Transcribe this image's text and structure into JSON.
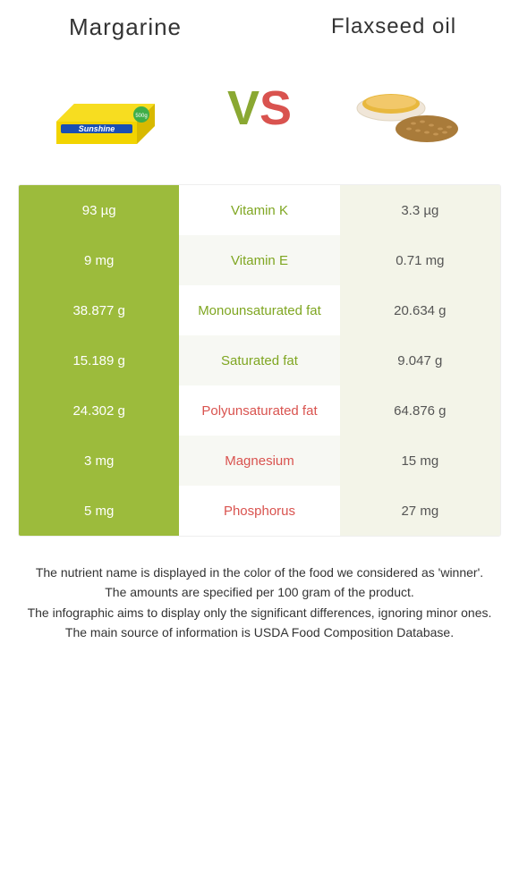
{
  "header": {
    "left_title": "Margarine",
    "right_title": "Flaxseed oil",
    "vs_v": "V",
    "vs_s": "S"
  },
  "colors": {
    "left_bg": "#9cbb3c",
    "left_text": "#ffffff",
    "mid_bg": "#ffffff",
    "mid_alt_bg": "#f7f8f3",
    "right_bg": "#f3f4e8",
    "right_text": "#555555",
    "winner_left": "#7fa621",
    "winner_right": "#d9534f",
    "border": "#eeeeee",
    "margarine_box": "#f2d400",
    "margarine_box_shadow": "#e0c400",
    "margarine_band": "#1a4fb3",
    "oil": "#e8b83e",
    "bowl": "#f0e6d8",
    "seeds": "#a97b3a"
  },
  "rows": [
    {
      "left": "93 µg",
      "mid": "Vitamin K",
      "right": "3.3 µg",
      "winner": "left"
    },
    {
      "left": "9 mg",
      "mid": "Vitamin E",
      "right": "0.71 mg",
      "winner": "left"
    },
    {
      "left": "38.877 g",
      "mid": "Monounsaturated fat",
      "right": "20.634 g",
      "winner": "left"
    },
    {
      "left": "15.189 g",
      "mid": "Saturated fat",
      "right": "9.047 g",
      "winner": "left"
    },
    {
      "left": "24.302 g",
      "mid": "Polyunsaturated fat",
      "right": "64.876 g",
      "winner": "right"
    },
    {
      "left": "3 mg",
      "mid": "Magnesium",
      "right": "15 mg",
      "winner": "right"
    },
    {
      "left": "5 mg",
      "mid": "Phosphorus",
      "right": "27 mg",
      "winner": "right"
    }
  ],
  "footer": {
    "l1": "The nutrient name is displayed in the color of the food we considered as 'winner'.",
    "l2": "The amounts are specified per 100 gram of the product.",
    "l3": "The infographic aims to display only the significant differences, ignoring minor ones.",
    "l4": "The main source of information is USDA Food Composition Database."
  }
}
